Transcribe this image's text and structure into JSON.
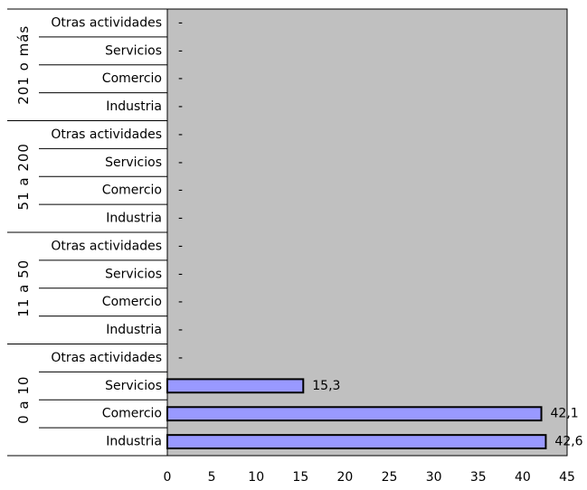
{
  "chart_data": {
    "type": "bar",
    "orientation": "horizontal",
    "groups": [
      {
        "label": "0 a 10",
        "categories": [
          "Industria",
          "Comercio",
          "Servicios",
          "Otras actividades"
        ],
        "values": [
          42.6,
          42.1,
          15.3,
          null
        ],
        "labels": [
          "42,6",
          "42,1",
          "15,3",
          "-"
        ]
      },
      {
        "label": "11 a 50",
        "categories": [
          "Industria",
          "Comercio",
          "Servicios",
          "Otras actividades"
        ],
        "values": [
          null,
          null,
          null,
          null
        ],
        "labels": [
          "-",
          "-",
          "-",
          "-"
        ]
      },
      {
        "label": "51 a 200",
        "categories": [
          "Industria",
          "Comercio",
          "Servicios",
          "Otras actividades"
        ],
        "values": [
          null,
          null,
          null,
          null
        ],
        "labels": [
          "-",
          "-",
          "-",
          "-"
        ]
      },
      {
        "label": "201 o más",
        "categories": [
          "Industria",
          "Comercio",
          "Servicios",
          "Otras actividades"
        ],
        "values": [
          null,
          null,
          null,
          null
        ],
        "labels": [
          "-",
          "-",
          "-",
          "-"
        ]
      }
    ],
    "xlim": [
      0,
      45
    ],
    "xticks": [
      0,
      5,
      10,
      15,
      20,
      25,
      30,
      35,
      40,
      45
    ],
    "grid": false,
    "plot_background": "#c0c0c0",
    "bar_color": "#9999ff",
    "bar_edge": "#000000"
  }
}
